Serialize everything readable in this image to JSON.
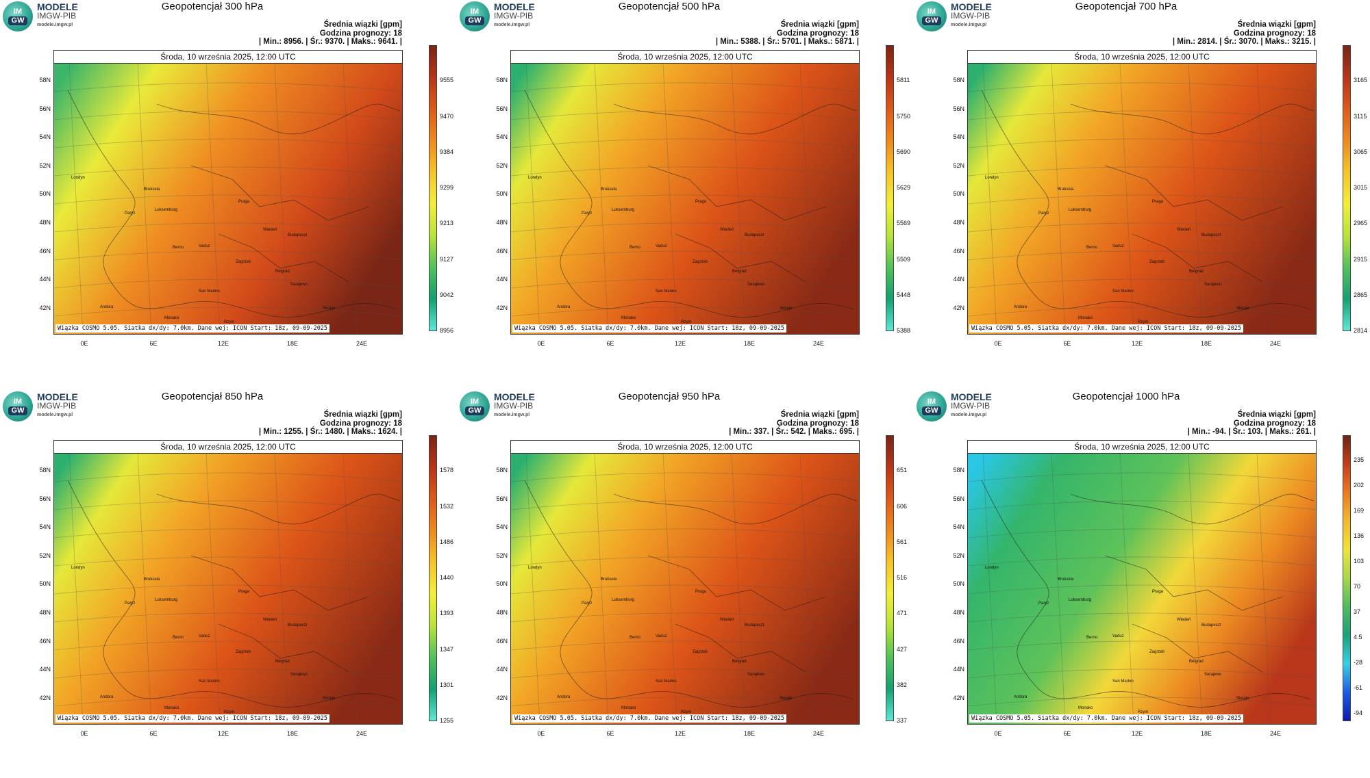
{
  "brand": {
    "name": "MODELE",
    "org": "IMGW-PIB",
    "url": "modele.imgw.pl",
    "logo_top": "IM",
    "logo_bottom": "GW"
  },
  "common": {
    "subtitle": "Średnia wiązki [gpm]",
    "forecast_hour": "Godzina prognozy: 18",
    "date": "Środa, 10 września 2025, 12:00 UTC",
    "credit": "Wiązka COSMO 5.05. Siatka dx/dy: 7.0km. Dane wej: ICON Start: 18z, 09-09-2025",
    "lat_labels": [
      "58N",
      "56N",
      "54N",
      "52N",
      "50N",
      "48N",
      "46N",
      "44N",
      "42N"
    ],
    "lon_labels": [
      "0E",
      "6E",
      "12E",
      "18E",
      "24E"
    ],
    "cities": [
      "Londyn",
      "Bruksela",
      "Paryż",
      "Luksemburg",
      "Praga",
      "Wiedeń",
      "Budapeszt",
      "Berno",
      "Vaduz",
      "Zagrzeb",
      "Belgrad",
      "San Marino",
      "Sarajewo",
      "Monako",
      "Andora",
      "Rzym",
      "Skopje"
    ]
  },
  "panels": [
    {
      "title": "Geopotencjał 300 hPa",
      "stats": "| Min.:   8956. | Śr.:   9370. | Maks.:   9641. |",
      "colorbar": [
        "9555",
        "9470",
        "9384",
        "9299",
        "9213",
        "9127",
        "9042",
        "8956"
      ],
      "scheme": "warm"
    },
    {
      "title": "Geopotencjał 500 hPa",
      "stats": "| Min.:   5388. | Śr.:   5701. | Maks.:   5871. |",
      "colorbar": [
        "5811",
        "5750",
        "5690",
        "5629",
        "5569",
        "5509",
        "5448",
        "5388"
      ],
      "scheme": "warm"
    },
    {
      "title": "Geopotencjał 700 hPa",
      "stats": "| Min.:   2814. | Śr.:   3070. | Maks.:   3215. |",
      "colorbar": [
        "3165",
        "3115",
        "3065",
        "3015",
        "2965",
        "2915",
        "2865",
        "2814"
      ],
      "scheme": "warm"
    },
    {
      "title": "Geopotencjał 850 hPa",
      "stats": "| Min.:   1255. | Śr.:   1480. | Maks.:   1624. |",
      "colorbar": [
        "1578",
        "1532",
        "1486",
        "1440",
        "1393",
        "1347",
        "1301",
        "1255"
      ],
      "scheme": "warm"
    },
    {
      "title": "Geopotencjał 950 hPa",
      "stats": "| Min.:    337. | Śr.:    542. | Maks.:    695. |",
      "colorbar": [
        "651",
        "606",
        "561",
        "516",
        "471",
        "427",
        "382",
        "337"
      ],
      "scheme": "warm"
    },
    {
      "title": "Geopotencjał 1000 hPa",
      "stats": "| Min.:    -94. | Śr.:    103. | Maks.:    261. |",
      "colorbar": [
        "235",
        "202",
        "169",
        "136",
        "103",
        "70",
        "37",
        "4.5",
        "-28",
        "-61",
        "-94"
      ],
      "scheme": "cool"
    }
  ],
  "colors": {
    "warm": [
      "#7a2414",
      "#b83518",
      "#de5a1a",
      "#ee8a1e",
      "#f6c42a",
      "#f2ee3a",
      "#b9e33b",
      "#52c25a",
      "#15a071",
      "#5ee8d8"
    ],
    "cool": [
      "#6e2314",
      "#c53e1a",
      "#ec7a1f",
      "#f4b92c",
      "#eee43a",
      "#a8d84a",
      "#4cbd5d",
      "#1aa07a",
      "#38d0e8",
      "#1a5ee6",
      "#1018b0"
    ]
  }
}
